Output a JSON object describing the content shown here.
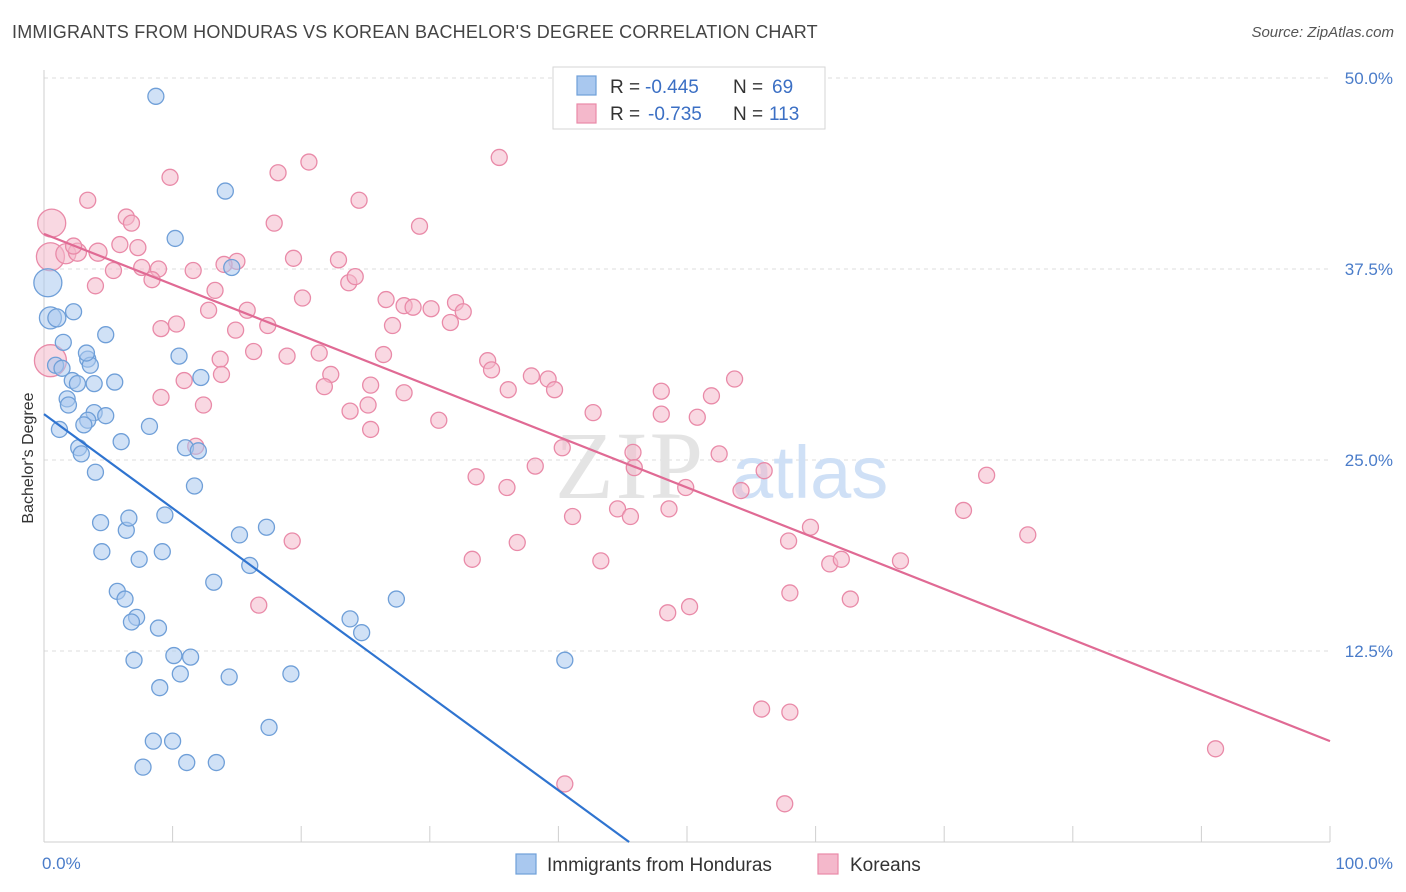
{
  "header": {
    "title": "IMMIGRANTS FROM HONDURAS VS KOREAN BACHELOR'S DEGREE CORRELATION CHART",
    "source": "Source: ZipAtlas.com"
  },
  "watermark": {
    "part1": "ZIP",
    "part2": "atlas"
  },
  "colors": {
    "blue_fill": "#a9c8ef",
    "blue_stroke": "#6f9fd8",
    "blue_line": "#2f74d0",
    "pink_fill": "#f4b8cb",
    "pink_stroke": "#e98aa8",
    "pink_line": "#e06a94",
    "grid": "#dddddd",
    "tick_label": "#4a7cc9"
  },
  "legend": {
    "series1": {
      "r_label": "R = ",
      "r_value": "-0.445",
      "n_label": "N = ",
      "n_value": "69"
    },
    "series2": {
      "r_label": "R = ",
      "r_value": "-0.735",
      "n_label": "N = ",
      "n_value": "113"
    }
  },
  "chart_data": {
    "type": "scatter",
    "title": "IMMIGRANTS FROM HONDURAS VS KOREAN BACHELOR'S DEGREE CORRELATION CHART",
    "xlabel": "",
    "ylabel": "Bachelor's Degree",
    "xlim": [
      0,
      100
    ],
    "ylim": [
      0,
      50
    ],
    "x_tick_labels": [
      "0.0%",
      "100.0%"
    ],
    "y_ticks": [
      {
        "value": 12.5,
        "label": "12.5%"
      },
      {
        "value": 25.0,
        "label": "25.0%"
      },
      {
        "value": 37.5,
        "label": "37.5%"
      },
      {
        "value": 50.0,
        "label": "50.0%"
      }
    ],
    "grid": true,
    "legend_position": "top-center",
    "series": [
      {
        "name": "Immigrants from Honduras",
        "color": "#a9c8ef",
        "trend": {
          "x0": 0.0,
          "y0": 28.0,
          "x1": 45.5,
          "y1": 0.0
        },
        "points": [
          [
            0.3,
            36.6,
            14
          ],
          [
            0.5,
            34.3,
            11
          ],
          [
            1.0,
            34.3,
            9
          ],
          [
            2.3,
            34.7,
            8
          ],
          [
            1.5,
            32.7,
            8
          ],
          [
            0.9,
            31.2,
            8
          ],
          [
            3.4,
            31.6,
            8
          ],
          [
            4.8,
            33.2,
            8
          ],
          [
            2.2,
            30.2,
            8
          ],
          [
            3.6,
            31.2,
            8
          ],
          [
            3.9,
            30.0,
            8
          ],
          [
            1.8,
            29.0,
            8
          ],
          [
            1.9,
            28.6,
            8
          ],
          [
            3.9,
            28.1,
            8
          ],
          [
            4.8,
            27.9,
            8
          ],
          [
            3.4,
            27.6,
            8
          ],
          [
            3.1,
            27.3,
            8
          ],
          [
            1.2,
            27.0,
            8
          ],
          [
            8.2,
            27.2,
            8
          ],
          [
            6.0,
            26.2,
            8
          ],
          [
            2.7,
            25.8,
            8
          ],
          [
            2.9,
            25.4,
            8
          ],
          [
            11.0,
            25.8,
            8
          ],
          [
            12.0,
            25.6,
            8
          ],
          [
            4.0,
            24.2,
            8
          ],
          [
            11.7,
            23.3,
            8
          ],
          [
            4.4,
            20.9,
            8
          ],
          [
            6.4,
            20.4,
            8
          ],
          [
            6.6,
            21.2,
            8
          ],
          [
            9.4,
            21.4,
            8
          ],
          [
            15.2,
            20.1,
            8
          ],
          [
            17.3,
            20.6,
            8
          ],
          [
            9.2,
            19.0,
            8
          ],
          [
            4.5,
            19.0,
            8
          ],
          [
            7.4,
            18.5,
            8
          ],
          [
            16.0,
            18.1,
            8
          ],
          [
            13.2,
            17.0,
            8
          ],
          [
            5.7,
            16.4,
            8
          ],
          [
            6.3,
            15.9,
            8
          ],
          [
            27.4,
            15.9,
            8
          ],
          [
            7.2,
            14.7,
            8
          ],
          [
            6.8,
            14.4,
            8
          ],
          [
            8.9,
            14.0,
            8
          ],
          [
            23.8,
            14.6,
            8
          ],
          [
            24.7,
            13.7,
            8
          ],
          [
            10.1,
            12.2,
            8
          ],
          [
            11.4,
            12.1,
            8
          ],
          [
            7.0,
            11.9,
            8
          ],
          [
            40.5,
            11.9,
            8
          ],
          [
            10.6,
            11.0,
            8
          ],
          [
            14.4,
            10.8,
            8
          ],
          [
            19.2,
            11.0,
            8
          ],
          [
            9.0,
            10.1,
            8
          ],
          [
            17.5,
            7.5,
            8
          ],
          [
            8.5,
            6.6,
            8
          ],
          [
            10.0,
            6.6,
            8
          ],
          [
            11.1,
            5.2,
            8
          ],
          [
            13.4,
            5.2,
            8
          ],
          [
            7.7,
            4.9,
            8
          ],
          [
            8.7,
            48.8,
            8
          ],
          [
            14.1,
            42.6,
            8
          ],
          [
            10.2,
            39.5,
            8
          ],
          [
            14.6,
            37.6,
            8
          ],
          [
            10.5,
            31.8,
            8
          ],
          [
            12.2,
            30.4,
            8
          ],
          [
            3.3,
            32.0,
            8
          ],
          [
            2.6,
            30.0,
            8
          ],
          [
            5.5,
            30.1,
            8
          ],
          [
            1.4,
            31.0,
            8
          ]
        ]
      },
      {
        "name": "Koreans",
        "color": "#f4b8cb",
        "trend": {
          "x0": 0.0,
          "y0": 39.8,
          "x1": 100.0,
          "y1": 6.6
        },
        "points": [
          [
            0.6,
            40.5,
            14
          ],
          [
            0.5,
            38.3,
            14
          ],
          [
            0.5,
            31.5,
            16
          ],
          [
            1.7,
            38.5,
            10
          ],
          [
            2.6,
            38.6,
            9
          ],
          [
            4.2,
            38.6,
            9
          ],
          [
            3.4,
            42.0,
            8
          ],
          [
            6.4,
            40.9,
            8
          ],
          [
            6.8,
            40.5,
            8
          ],
          [
            5.9,
            39.1,
            8
          ],
          [
            7.3,
            38.9,
            8
          ],
          [
            5.4,
            37.4,
            8
          ],
          [
            7.6,
            37.6,
            8
          ],
          [
            8.9,
            37.5,
            8
          ],
          [
            11.6,
            37.4,
            8
          ],
          [
            15.0,
            38.0,
            8
          ],
          [
            14.0,
            37.8,
            8
          ],
          [
            4.0,
            36.4,
            8
          ],
          [
            8.4,
            36.8,
            8
          ],
          [
            13.3,
            36.1,
            8
          ],
          [
            9.8,
            43.5,
            8
          ],
          [
            18.2,
            43.8,
            8
          ],
          [
            20.6,
            44.5,
            8
          ],
          [
            24.5,
            42.0,
            8
          ],
          [
            17.9,
            40.5,
            8
          ],
          [
            29.2,
            40.3,
            8
          ],
          [
            35.4,
            44.8,
            8
          ],
          [
            19.4,
            38.2,
            8
          ],
          [
            22.9,
            38.1,
            8
          ],
          [
            23.7,
            36.6,
            8
          ],
          [
            24.2,
            37.0,
            8
          ],
          [
            20.1,
            35.6,
            8
          ],
          [
            26.6,
            35.5,
            8
          ],
          [
            28.0,
            35.1,
            8
          ],
          [
            28.7,
            35.0,
            8
          ],
          [
            30.1,
            34.9,
            8
          ],
          [
            32.0,
            35.3,
            8
          ],
          [
            32.6,
            34.7,
            8
          ],
          [
            12.8,
            34.8,
            8
          ],
          [
            15.8,
            34.8,
            8
          ],
          [
            10.3,
            33.9,
            8
          ],
          [
            14.9,
            33.5,
            8
          ],
          [
            17.4,
            33.8,
            8
          ],
          [
            27.1,
            33.8,
            8
          ],
          [
            31.6,
            34.0,
            8
          ],
          [
            13.7,
            31.6,
            8
          ],
          [
            16.3,
            32.1,
            8
          ],
          [
            18.9,
            31.8,
            8
          ],
          [
            21.4,
            32.0,
            8
          ],
          [
            26.4,
            31.9,
            8
          ],
          [
            34.5,
            31.5,
            8
          ],
          [
            22.3,
            30.6,
            8
          ],
          [
            34.8,
            30.9,
            8
          ],
          [
            37.9,
            30.5,
            8
          ],
          [
            39.2,
            30.3,
            8
          ],
          [
            10.9,
            30.2,
            8
          ],
          [
            21.8,
            29.8,
            8
          ],
          [
            25.4,
            29.9,
            8
          ],
          [
            28.0,
            29.4,
            8
          ],
          [
            36.1,
            29.6,
            8
          ],
          [
            39.7,
            29.6,
            8
          ],
          [
            48.0,
            29.5,
            8
          ],
          [
            51.9,
            29.2,
            8
          ],
          [
            53.7,
            30.3,
            8
          ],
          [
            9.1,
            29.1,
            8
          ],
          [
            12.4,
            28.6,
            8
          ],
          [
            23.8,
            28.2,
            8
          ],
          [
            25.2,
            28.6,
            8
          ],
          [
            42.7,
            28.1,
            8
          ],
          [
            48.0,
            28.0,
            8
          ],
          [
            50.8,
            27.8,
            8
          ],
          [
            30.7,
            27.6,
            8
          ],
          [
            25.4,
            27.0,
            8
          ],
          [
            11.8,
            25.9,
            8
          ],
          [
            40.3,
            25.8,
            8
          ],
          [
            45.8,
            25.5,
            8
          ],
          [
            52.5,
            25.4,
            8
          ],
          [
            38.2,
            24.6,
            8
          ],
          [
            45.9,
            24.5,
            8
          ],
          [
            56.0,
            24.3,
            8
          ],
          [
            33.6,
            23.9,
            8
          ],
          [
            36.0,
            23.2,
            8
          ],
          [
            49.9,
            23.2,
            8
          ],
          [
            54.2,
            23.0,
            8
          ],
          [
            73.3,
            24.0,
            8
          ],
          [
            44.6,
            21.8,
            8
          ],
          [
            48.6,
            21.8,
            8
          ],
          [
            45.6,
            21.3,
            8
          ],
          [
            41.1,
            21.3,
            8
          ],
          [
            71.5,
            21.7,
            8
          ],
          [
            59.6,
            20.6,
            8
          ],
          [
            76.5,
            20.1,
            8
          ],
          [
            19.3,
            19.7,
            8
          ],
          [
            36.8,
            19.6,
            8
          ],
          [
            57.9,
            19.7,
            8
          ],
          [
            33.3,
            18.5,
            8
          ],
          [
            43.3,
            18.4,
            8
          ],
          [
            61.1,
            18.2,
            8
          ],
          [
            62.0,
            18.5,
            8
          ],
          [
            66.6,
            18.4,
            8
          ],
          [
            58.0,
            16.3,
            8
          ],
          [
            62.7,
            15.9,
            8
          ],
          [
            16.7,
            15.5,
            8
          ],
          [
            50.2,
            15.4,
            8
          ],
          [
            48.5,
            15.0,
            8
          ],
          [
            55.8,
            8.7,
            8
          ],
          [
            58.0,
            8.5,
            8
          ],
          [
            91.1,
            6.1,
            8
          ],
          [
            40.5,
            3.8,
            8
          ],
          [
            57.6,
            2.5,
            8
          ],
          [
            13.8,
            30.6,
            8
          ],
          [
            9.1,
            33.6,
            8
          ],
          [
            2.3,
            39.0,
            8
          ]
        ]
      }
    ]
  }
}
